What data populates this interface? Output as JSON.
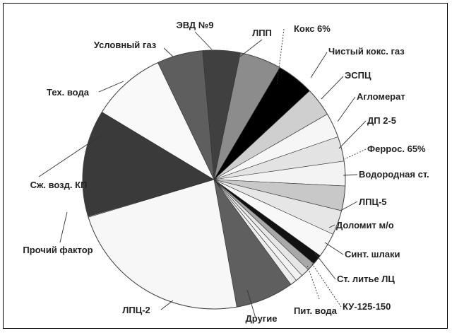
{
  "chart_data": {
    "type": "pie",
    "title": "",
    "categories": [
      "ЭВД №9",
      "ЛПП",
      "Кокс 6%",
      "Чистый кокс. газ",
      "ЭСПЦ",
      "Агломерат",
      "ДП 2-5",
      "Ферроc. 65%",
      "Водородная ст.",
      "ЛПЦ-5",
      "Доломит м/о",
      "Синт. шлаки",
      "Ст. литье ЛЦ",
      "КУ-125-150",
      "Пит. вода",
      "Другие",
      "ЛПЦ-2",
      "Прочий фактор",
      "Сж. возд. КП",
      "Тех. вода",
      "Условный газ"
    ],
    "values": [
      4.5,
      5.0,
      4.5,
      3.5,
      3.0,
      3.0,
      3.0,
      3.0,
      3.0,
      3.0,
      1.2,
      1.0,
      1.0,
      0.9,
      0.8,
      7.0,
      22.5,
      0.1,
      13.0,
      9.0,
      5.5
    ],
    "colors": [
      "#404040",
      "#8c8c8c",
      "#000000",
      "#cfcfcf",
      "#f6f6f6",
      "#e3e3e3",
      "#f3f3f3",
      "#c8c8c8",
      "#e6e6e6",
      "#f8f8f8",
      "#111111",
      "#a8a8a8",
      "#e6e6e6",
      "#f2f2f2",
      "#ededed",
      "#5f5f5f",
      "#f7f7f7",
      "#c8c8c8",
      "#3a3a3a",
      "#f9f9f9",
      "#5e5e5e"
    ],
    "start_angle_deg": -95,
    "legend": "none",
    "data_labels": "outside-with-leaders"
  }
}
